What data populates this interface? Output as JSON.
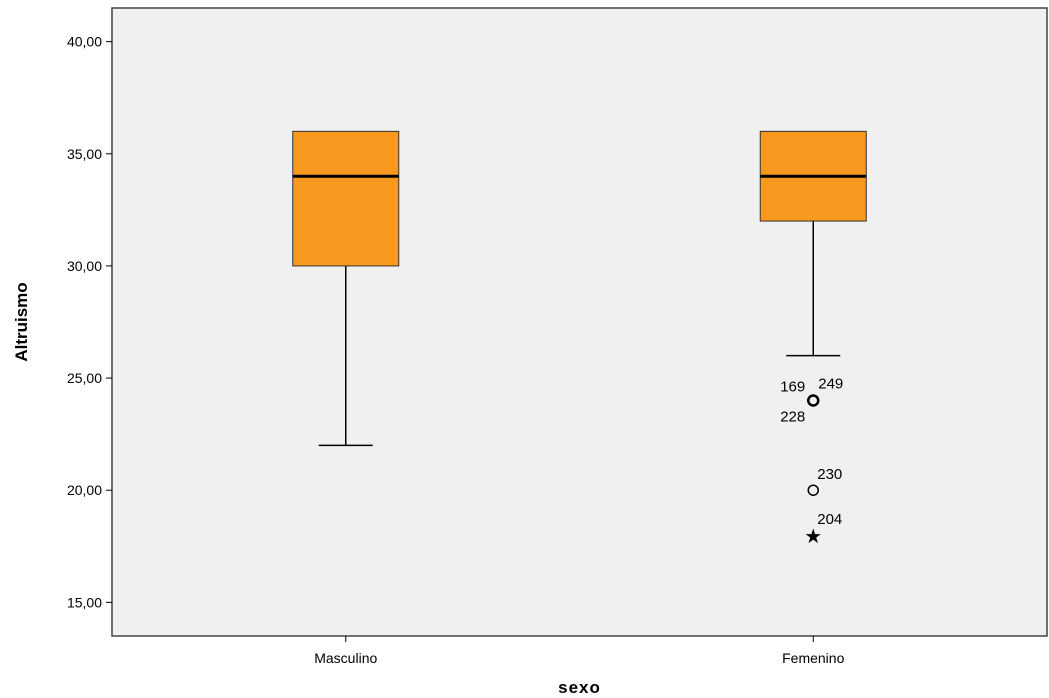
{
  "chart_data": {
    "type": "box",
    "title": "",
    "xlabel": "sexo",
    "ylabel": "Altruismo",
    "ylim": [
      13.5,
      41.5
    ],
    "yticks": [
      "15,00",
      "20,00",
      "25,00",
      "30,00",
      "35,00",
      "40,00"
    ],
    "ytick_values": [
      15,
      20,
      25,
      30,
      35,
      40
    ],
    "grid": false,
    "categories": [
      "Masculino",
      "Femenino"
    ],
    "boxes": [
      {
        "category": "Masculino",
        "whisker_low": 22,
        "q1": 30,
        "median": 34,
        "q3": 36,
        "whisker_high": 36,
        "outliers": []
      },
      {
        "category": "Femenino",
        "whisker_low": 26,
        "q1": 32,
        "median": 34,
        "q3": 36,
        "whisker_high": 36,
        "outliers": [
          {
            "value": 24,
            "marker": "circle",
            "labels": [
              "169",
              "249",
              "228"
            ]
          },
          {
            "value": 20,
            "marker": "circle",
            "labels": [
              "230"
            ]
          },
          {
            "value": 18,
            "marker": "star",
            "labels": [
              "204"
            ]
          }
        ]
      }
    ],
    "colors": {
      "box_fill": "#f7981f",
      "plot_background": "#f0f0f0",
      "line": "#000000"
    }
  }
}
